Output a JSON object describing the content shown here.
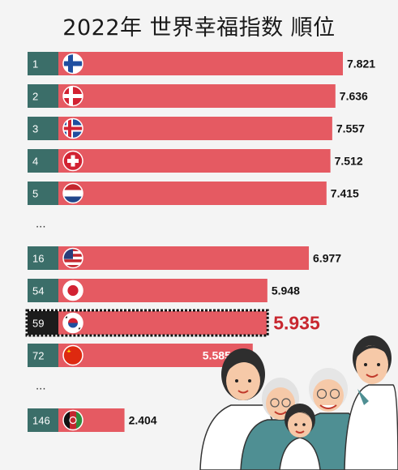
{
  "title": "2022年 世界幸福指数 順位",
  "colors": {
    "bar": "#e55a62",
    "rank_block": "#3b6e69",
    "highlight_text": "#c8272f",
    "value_text": "#111111",
    "rank_text": "#ffffff",
    "highlight_outline": "#111111"
  },
  "chart_data": {
    "type": "bar",
    "orientation": "horizontal",
    "title": "2022年 世界幸福指数 順位",
    "xlabel": "",
    "ylabel": "",
    "xlim": [
      0,
      7.821
    ],
    "rows": [
      {
        "rank": "1",
        "flag": "finland-flag",
        "value": 7.821,
        "label": "7.821"
      },
      {
        "rank": "2",
        "flag": "denmark-flag",
        "value": 7.636,
        "label": "7.636"
      },
      {
        "rank": "3",
        "flag": "iceland-flag",
        "value": 7.557,
        "label": "7.557"
      },
      {
        "rank": "4",
        "flag": "switzerland-flag",
        "value": 7.512,
        "label": "7.512"
      },
      {
        "rank": "5",
        "flag": "netherlands-flag",
        "value": 7.415,
        "label": "7.415"
      },
      {
        "ellipsis": "..."
      },
      {
        "rank": "16",
        "flag": "usa-flag",
        "value": 6.977,
        "label": "6.977"
      },
      {
        "rank": "54",
        "flag": "japan-flag",
        "value": 5.948,
        "label": "5.948"
      },
      {
        "rank": "59",
        "flag": "korea-flag",
        "value": 5.935,
        "label": "5.935",
        "highlight": true
      },
      {
        "rank": "72",
        "flag": "china-flag",
        "value": 5.585,
        "label": "5.585",
        "label_inside": true
      },
      {
        "ellipsis": "..."
      },
      {
        "rank": "146",
        "flag": "afghanistan-flag",
        "value": 2.404,
        "label": "2.404"
      }
    ]
  }
}
